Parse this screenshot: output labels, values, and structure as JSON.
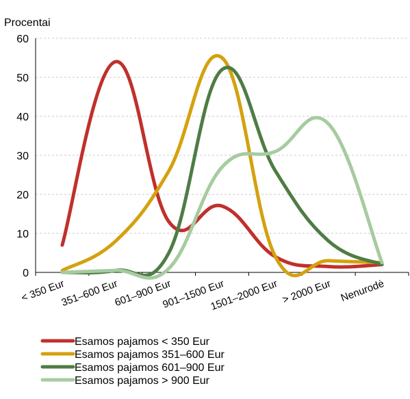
{
  "chart_data": {
    "type": "line",
    "ylabel": "Procentai",
    "xlabel": "",
    "ylim": [
      0,
      60
    ],
    "yticks": [
      0,
      10,
      20,
      30,
      40,
      50,
      60
    ],
    "grid": true,
    "legend_position": "bottom-left",
    "categories": [
      "< 350 Eur",
      "351–600 Eur",
      "601–900 Eur",
      "901–1500 Eur",
      "1501–2000 Eur",
      "> 2000 Eur",
      "Nenurodė"
    ],
    "series": [
      {
        "name": "Esamos pajamos < 350 Eur",
        "color": "#c0302b",
        "values": [
          7,
          54,
          13,
          17,
          4,
          1.5,
          2
        ]
      },
      {
        "name": "Esamos pajamos 351–600 Eur",
        "color": "#d4a10f",
        "values": [
          0.5,
          8,
          26,
          55,
          4,
          3,
          2.5
        ]
      },
      {
        "name": "Esamos pajamos 601–900 Eur",
        "color": "#4f7c45",
        "values": [
          0,
          0.5,
          5,
          52,
          26,
          8,
          2
        ]
      },
      {
        "name": "Esamos pajamos > 900 Eur",
        "color": "#a6cba0",
        "values": [
          0,
          0.5,
          1,
          27,
          31,
          38,
          2.5
        ]
      }
    ]
  }
}
